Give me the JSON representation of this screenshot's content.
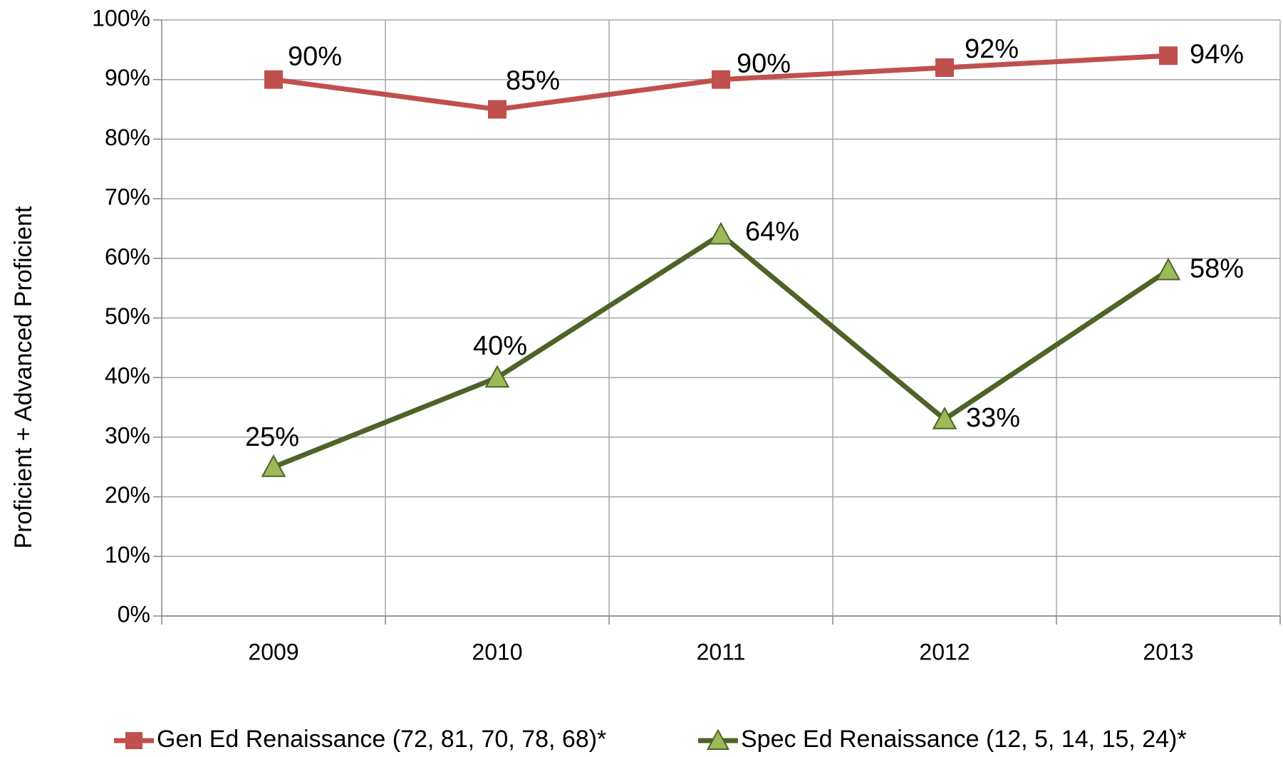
{
  "chart_data": {
    "type": "line",
    "y_label": "Proficient + Advanced Proficient",
    "categories": [
      "2009",
      "2010",
      "2011",
      "2012",
      "2013"
    ],
    "series": [
      {
        "name": "Gen Ed Renaissance (72, 81, 70, 78, 68)*",
        "color": "#c0504d",
        "marker": "square",
        "values": [
          90,
          85,
          90,
          92,
          94
        ],
        "value_labels": [
          "90%",
          "85%",
          "90%",
          "92%",
          "94%"
        ]
      },
      {
        "name": "Spec Ed Renaissance (12, 5, 14, 15, 24)*",
        "color": "#4f6228",
        "marker_color": "#9bbb59",
        "marker": "triangle",
        "values": [
          25,
          40,
          64,
          33,
          58
        ],
        "value_labels": [
          "25%",
          "40%",
          "64%",
          "33%",
          "58%"
        ]
      }
    ],
    "ylim": [
      0,
      100
    ],
    "yticks": [
      {
        "value": 0,
        "label": "0%"
      },
      {
        "value": 10,
        "label": "10%"
      },
      {
        "value": 20,
        "label": "20%"
      },
      {
        "value": 30,
        "label": "30%"
      },
      {
        "value": 40,
        "label": "40%"
      },
      {
        "value": 50,
        "label": "50%"
      },
      {
        "value": 60,
        "label": "60%"
      },
      {
        "value": 70,
        "label": "70%"
      },
      {
        "value": 80,
        "label": "80%"
      },
      {
        "value": 90,
        "label": "90%"
      },
      {
        "value": 100,
        "label": "100%"
      }
    ],
    "grid": true,
    "legend": "bottom"
  }
}
